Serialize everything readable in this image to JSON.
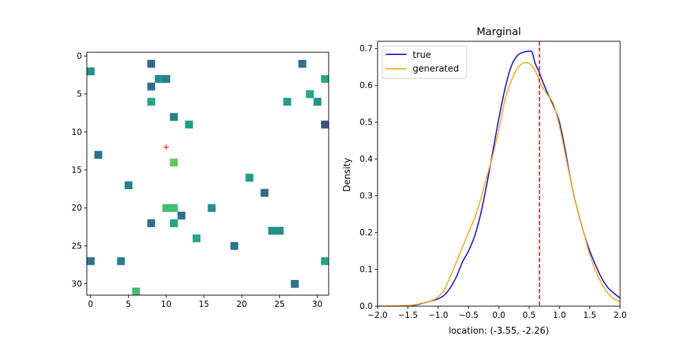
{
  "chart_data": [
    {
      "type": "heatmap",
      "title": "",
      "xlabel": "",
      "ylabel": "",
      "grid": false,
      "y_inverted": true,
      "xlim": [
        -0.5,
        31.5
      ],
      "ylim": [
        31.5,
        -0.5
      ],
      "xticks": [
        0,
        5,
        10,
        15,
        20,
        25,
        30
      ],
      "yticks": [
        0,
        5,
        10,
        15,
        20,
        25,
        30
      ],
      "marker": {
        "x": 10,
        "y": 12,
        "symbol": "+",
        "color": "#ff0000"
      },
      "cells": [
        {
          "x": 8,
          "y": 1,
          "color": "#31688e"
        },
        {
          "x": 28,
          "y": 1,
          "color": "#2c728e"
        },
        {
          "x": 0,
          "y": 2,
          "color": "#21918c"
        },
        {
          "x": 9,
          "y": 3,
          "color": "#21918c"
        },
        {
          "x": 10,
          "y": 3,
          "color": "#277f8e"
        },
        {
          "x": 31,
          "y": 3,
          "color": "#22a884"
        },
        {
          "x": 8,
          "y": 4,
          "color": "#2c728e"
        },
        {
          "x": 29,
          "y": 5,
          "color": "#22a884"
        },
        {
          "x": 8,
          "y": 6,
          "color": "#22a884"
        },
        {
          "x": 26,
          "y": 6,
          "color": "#1f9e89"
        },
        {
          "x": 30,
          "y": 6,
          "color": "#21918c"
        },
        {
          "x": 11,
          "y": 8,
          "color": "#277f8e"
        },
        {
          "x": 13,
          "y": 9,
          "color": "#1f9e89"
        },
        {
          "x": 31,
          "y": 9,
          "color": "#3b528b"
        },
        {
          "x": 1,
          "y": 13,
          "color": "#2c728e"
        },
        {
          "x": 11,
          "y": 14,
          "color": "#5ec962"
        },
        {
          "x": 21,
          "y": 16,
          "color": "#1f9e89"
        },
        {
          "x": 5,
          "y": 17,
          "color": "#277f8e"
        },
        {
          "x": 23,
          "y": 18,
          "color": "#31688e"
        },
        {
          "x": 10,
          "y": 20,
          "color": "#44bf70"
        },
        {
          "x": 11,
          "y": 20,
          "color": "#44bf70"
        },
        {
          "x": 16,
          "y": 20,
          "color": "#21918c"
        },
        {
          "x": 12,
          "y": 21,
          "color": "#2c728e"
        },
        {
          "x": 8,
          "y": 22,
          "color": "#2c728e"
        },
        {
          "x": 11,
          "y": 22,
          "color": "#22a884"
        },
        {
          "x": 24,
          "y": 23,
          "color": "#21918c"
        },
        {
          "x": 25,
          "y": 23,
          "color": "#21918c"
        },
        {
          "x": 14,
          "y": 24,
          "color": "#22a884"
        },
        {
          "x": 19,
          "y": 25,
          "color": "#2c728e"
        },
        {
          "x": 0,
          "y": 27,
          "color": "#2c728e"
        },
        {
          "x": 4,
          "y": 27,
          "color": "#277f8e"
        },
        {
          "x": 31,
          "y": 27,
          "color": "#22a884"
        },
        {
          "x": 27,
          "y": 30,
          "color": "#2c728e"
        },
        {
          "x": 6,
          "y": 31,
          "color": "#44bf70"
        }
      ]
    },
    {
      "type": "line",
      "title": "Marginal",
      "xlabel": "location: (-3.55, -2.26)",
      "ylabel": "Density",
      "xlim": [
        -2.0,
        2.0
      ],
      "ylim": [
        0.0,
        0.72
      ],
      "xticks": [
        -2.0,
        -1.5,
        -1.0,
        -0.5,
        0.0,
        0.5,
        1.0,
        1.5,
        2.0
      ],
      "xtick_labels": [
        "−2.0",
        "−1.5",
        "−1.0",
        "−0.5",
        "0.0",
        "0.5",
        "1.0",
        "1.5",
        "2.0"
      ],
      "yticks": [
        0.0,
        0.1,
        0.2,
        0.3,
        0.4,
        0.5,
        0.6,
        0.7
      ],
      "ytick_labels": [
        "0.0",
        "0.1",
        "0.2",
        "0.3",
        "0.4",
        "0.5",
        "0.6",
        "0.7"
      ],
      "grid": false,
      "legend_position": "top-left",
      "vline": {
        "x": 0.67,
        "color": "#ff0000",
        "style": "dashed"
      },
      "series": [
        {
          "name": "true",
          "color": "#0000ff",
          "x": [
            -2.0,
            -1.5,
            -1.3,
            -1.1,
            -1.0,
            -0.9,
            -0.8,
            -0.7,
            -0.6,
            -0.5,
            -0.4,
            -0.3,
            -0.2,
            -0.1,
            0.0,
            0.1,
            0.2,
            0.3,
            0.4,
            0.5,
            0.55,
            0.6,
            0.67,
            0.7,
            0.8,
            0.9,
            1.0,
            1.1,
            1.2,
            1.3,
            1.4,
            1.5,
            1.6,
            1.7,
            1.8,
            1.9,
            2.0
          ],
          "y": [
            0.0,
            0.001,
            0.006,
            0.015,
            0.02,
            0.03,
            0.05,
            0.08,
            0.12,
            0.15,
            0.19,
            0.25,
            0.33,
            0.42,
            0.51,
            0.59,
            0.65,
            0.68,
            0.69,
            0.693,
            0.69,
            0.66,
            0.635,
            0.62,
            0.58,
            0.545,
            0.5,
            0.42,
            0.33,
            0.26,
            0.2,
            0.15,
            0.11,
            0.075,
            0.05,
            0.035,
            0.022
          ]
        },
        {
          "name": "generated",
          "color": "#ffa500",
          "x": [
            -2.0,
            -1.5,
            -1.3,
            -1.1,
            -1.0,
            -0.9,
            -0.8,
            -0.7,
            -0.6,
            -0.5,
            -0.4,
            -0.3,
            -0.2,
            -0.1,
            0.0,
            0.1,
            0.2,
            0.3,
            0.4,
            0.5,
            0.6,
            0.67,
            0.7,
            0.8,
            0.9,
            1.0,
            1.1,
            1.2,
            1.3,
            1.4,
            1.5,
            1.6,
            1.7,
            1.8,
            1.9,
            2.0
          ],
          "y": [
            0.0,
            0.002,
            0.007,
            0.016,
            0.025,
            0.045,
            0.08,
            0.12,
            0.16,
            0.2,
            0.24,
            0.29,
            0.35,
            0.41,
            0.48,
            0.56,
            0.61,
            0.645,
            0.66,
            0.66,
            0.64,
            0.612,
            0.6,
            0.575,
            0.55,
            0.49,
            0.41,
            0.33,
            0.26,
            0.2,
            0.14,
            0.095,
            0.06,
            0.035,
            0.02,
            0.012
          ]
        }
      ]
    }
  ]
}
